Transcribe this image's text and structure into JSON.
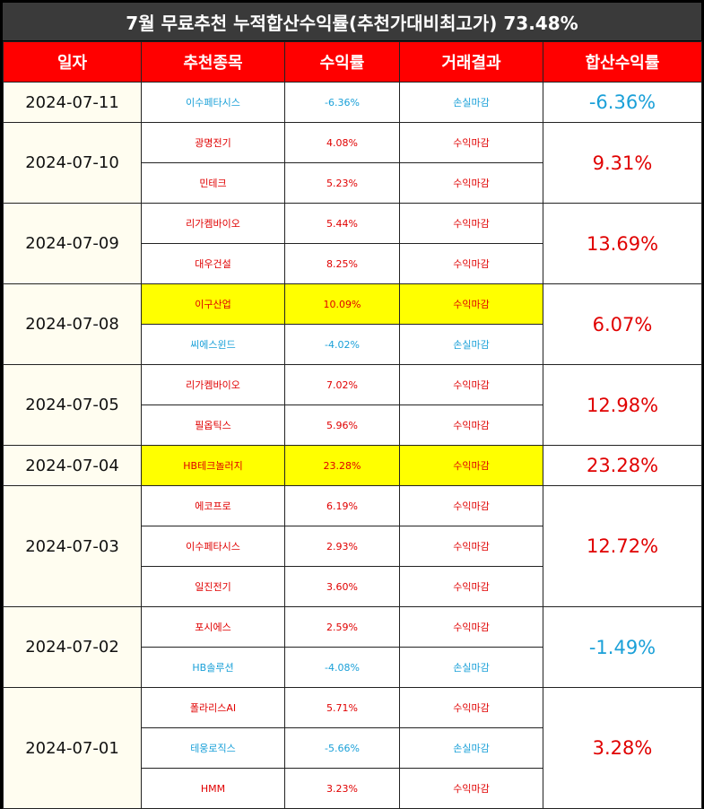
{
  "title": "7월 무료추천 누적합산수익률(추천가대비최고가) 73.48%",
  "colors": {
    "header_bg": "#ff0000",
    "gain": "#e00000",
    "loss": "#1aa0d8",
    "highlight": "#ffff00"
  },
  "headers": [
    "일자",
    "추천종목",
    "수익률",
    "거래결과",
    "합산수익률"
  ],
  "groups": [
    {
      "date": "2024-07-11",
      "total": "-6.36%",
      "total_type": "loss",
      "rows": [
        {
          "stock": "이수페타시스",
          "rate": "-6.36%",
          "result": "손실마감",
          "type": "loss",
          "highlight": false
        }
      ]
    },
    {
      "date": "2024-07-10",
      "total": "9.31%",
      "total_type": "gain",
      "rows": [
        {
          "stock": "광명전기",
          "rate": "4.08%",
          "result": "수익마감",
          "type": "gain",
          "highlight": false
        },
        {
          "stock": "민테크",
          "rate": "5.23%",
          "result": "수익마감",
          "type": "gain",
          "highlight": false
        }
      ]
    },
    {
      "date": "2024-07-09",
      "total": "13.69%",
      "total_type": "gain",
      "rows": [
        {
          "stock": "리가켐바이오",
          "rate": "5.44%",
          "result": "수익마감",
          "type": "gain",
          "highlight": false
        },
        {
          "stock": "대우건설",
          "rate": "8.25%",
          "result": "수익마감",
          "type": "gain",
          "highlight": false
        }
      ]
    },
    {
      "date": "2024-07-08",
      "total": "6.07%",
      "total_type": "gain",
      "rows": [
        {
          "stock": "이구산업",
          "rate": "10.09%",
          "result": "수익마감",
          "type": "gain",
          "highlight": true
        },
        {
          "stock": "씨에스윈드",
          "rate": "-4.02%",
          "result": "손실마감",
          "type": "loss",
          "highlight": false
        }
      ]
    },
    {
      "date": "2024-07-05",
      "total": "12.98%",
      "total_type": "gain",
      "rows": [
        {
          "stock": "리가켐바이오",
          "rate": "7.02%",
          "result": "수익마감",
          "type": "gain",
          "highlight": false
        },
        {
          "stock": "필옵틱스",
          "rate": "5.96%",
          "result": "수익마감",
          "type": "gain",
          "highlight": false
        }
      ]
    },
    {
      "date": "2024-07-04",
      "total": "23.28%",
      "total_type": "gain",
      "rows": [
        {
          "stock": "HB테크놀러지",
          "rate": "23.28%",
          "result": "수익마감",
          "type": "gain",
          "highlight": true
        }
      ]
    },
    {
      "date": "2024-07-03",
      "total": "12.72%",
      "total_type": "gain",
      "rows": [
        {
          "stock": "에코프로",
          "rate": "6.19%",
          "result": "수익마감",
          "type": "gain",
          "highlight": false
        },
        {
          "stock": "이수페타시스",
          "rate": "2.93%",
          "result": "수익마감",
          "type": "gain",
          "highlight": false
        },
        {
          "stock": "일진전기",
          "rate": "3.60%",
          "result": "수익마감",
          "type": "gain",
          "highlight": false
        }
      ]
    },
    {
      "date": "2024-07-02",
      "total": "-1.49%",
      "total_type": "loss",
      "rows": [
        {
          "stock": "포시에스",
          "rate": "2.59%",
          "result": "수익마감",
          "type": "gain",
          "highlight": false
        },
        {
          "stock": "HB솔루션",
          "rate": "-4.08%",
          "result": "손실마감",
          "type": "loss",
          "highlight": false
        }
      ]
    },
    {
      "date": "2024-07-01",
      "total": "3.28%",
      "total_type": "gain",
      "rows": [
        {
          "stock": "폴라리스AI",
          "rate": "5.71%",
          "result": "수익마감",
          "type": "gain",
          "highlight": false
        },
        {
          "stock": "테웅로직스",
          "rate": "-5.66%",
          "result": "손실마감",
          "type": "loss",
          "highlight": false
        },
        {
          "stock": "HMM",
          "rate": "3.23%",
          "result": "수익마감",
          "type": "gain",
          "highlight": false
        }
      ]
    }
  ]
}
